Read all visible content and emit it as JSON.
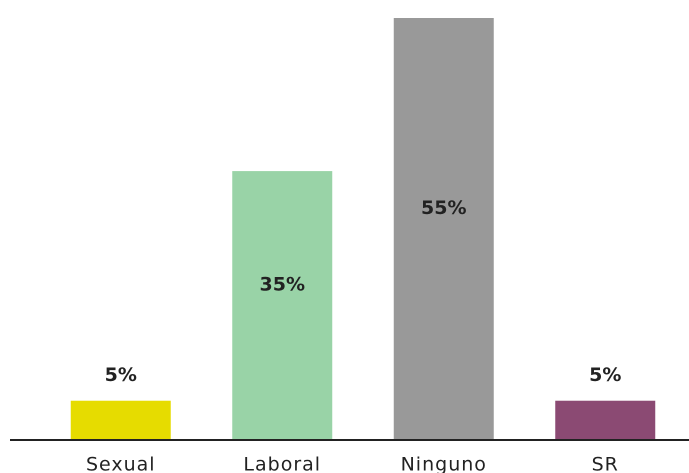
{
  "chart_data": {
    "type": "bar",
    "categories": [
      "Sexual",
      "Laboral",
      "Ninguno",
      "SR"
    ],
    "values": [
      5,
      35,
      55,
      5
    ],
    "value_labels": [
      "5%",
      "35%",
      "55%",
      "5%"
    ],
    "colors": [
      "#e6dc00",
      "#99d3a7",
      "#999999",
      "#8b4a73"
    ]
  }
}
